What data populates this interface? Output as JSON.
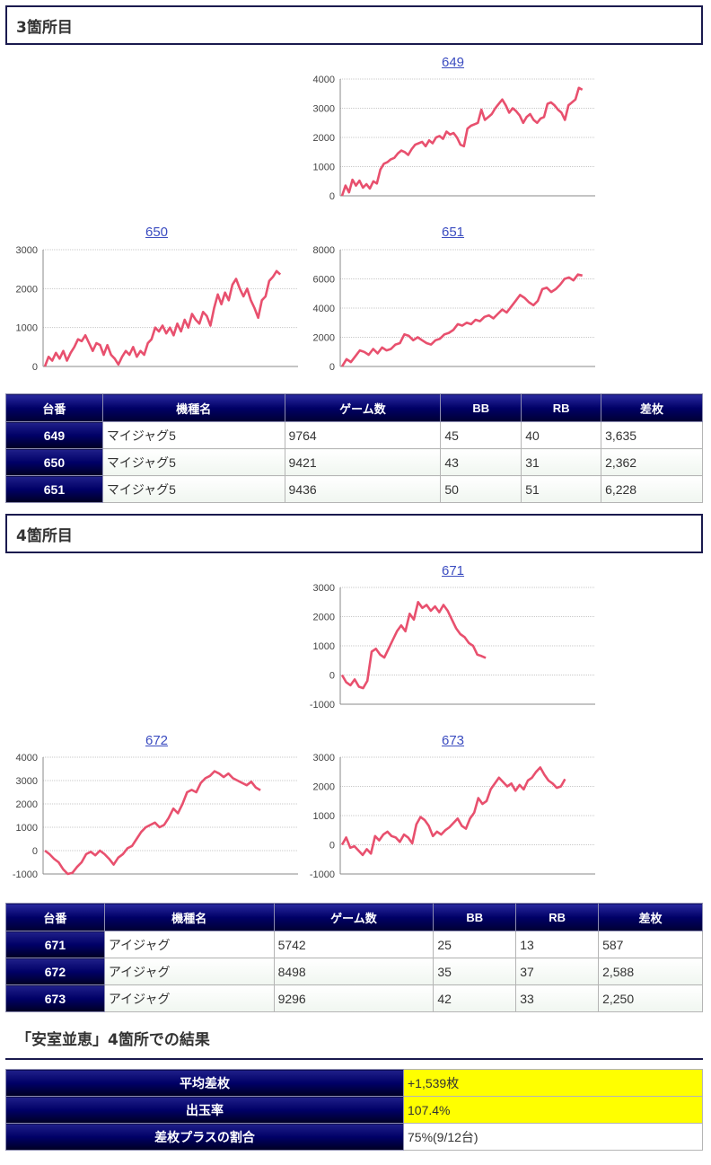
{
  "sections": [
    {
      "title": "3箇所目"
    },
    {
      "title": "4箇所目"
    }
  ],
  "tables": [
    {
      "headers": [
        "台番",
        "機種名",
        "ゲーム数",
        "BB",
        "RB",
        "差枚"
      ],
      "rows": [
        {
          "no": "649",
          "machine": "マイジャグ5",
          "games": "9764",
          "bb": "45",
          "rb": "40",
          "diff": "3,635"
        },
        {
          "no": "650",
          "machine": "マイジャグ5",
          "games": "9421",
          "bb": "43",
          "rb": "31",
          "diff": "2,362"
        },
        {
          "no": "651",
          "machine": "マイジャグ5",
          "games": "9436",
          "bb": "50",
          "rb": "51",
          "diff": "6,228"
        }
      ]
    },
    {
      "headers": [
        "台番",
        "機種名",
        "ゲーム数",
        "BB",
        "RB",
        "差枚"
      ],
      "rows": [
        {
          "no": "671",
          "machine": "アイジャグ",
          "games": "5742",
          "bb": "25",
          "rb": "13",
          "diff": "587"
        },
        {
          "no": "672",
          "machine": "アイジャグ",
          "games": "8498",
          "bb": "35",
          "rb": "37",
          "diff": "2,588"
        },
        {
          "no": "673",
          "machine": "アイジャグ",
          "games": "9296",
          "bb": "42",
          "rb": "33",
          "diff": "2,250"
        }
      ]
    }
  ],
  "result": {
    "title": "「安室並恵」4箇所での結果",
    "rows": [
      {
        "label": "平均差枚",
        "value": "+1,539枚",
        "highlight": true
      },
      {
        "label": "出玉率",
        "value": "107.4%",
        "highlight": true
      },
      {
        "label": "差枚プラスの割合",
        "value": "75%(9/12台)",
        "highlight": false
      }
    ]
  },
  "chart_data": [
    {
      "type": "line",
      "title": "649",
      "ylim": [
        0,
        4000
      ],
      "yticks": [
        0,
        1000,
        2000,
        3000,
        4000
      ],
      "ytick_labels": [
        "0",
        "1000",
        "2000",
        "3000",
        "4000"
      ],
      "grid": true,
      "color": "#e8506e",
      "values": [
        0,
        350,
        120,
        550,
        350,
        520,
        280,
        400,
        250,
        500,
        420,
        900,
        1100,
        1150,
        1250,
        1300,
        1450,
        1550,
        1500,
        1400,
        1600,
        1750,
        1800,
        1850,
        1700,
        1900,
        1800,
        2000,
        2050,
        1950,
        2200,
        2100,
        2150,
        2000,
        1750,
        1700,
        2300,
        2400,
        2450,
        2500,
        2950,
        2600,
        2700,
        2800,
        3000,
        3150,
        3300,
        3100,
        2850,
        3000,
        2900,
        2750,
        2500,
        2700,
        2800,
        2600,
        2500,
        2650,
        2700,
        3150,
        3200,
        3100,
        2950,
        2850,
        2600,
        3100,
        3200,
        3300,
        3700,
        3635
      ]
    },
    {
      "type": "line",
      "title": "650",
      "ylim": [
        0,
        3000
      ],
      "yticks": [
        0,
        1000,
        2000,
        3000
      ],
      "ytick_labels": [
        "0",
        "1000",
        "2000",
        "3000"
      ],
      "grid": true,
      "color": "#e8506e",
      "values": [
        0,
        250,
        150,
        350,
        200,
        400,
        150,
        350,
        500,
        700,
        650,
        800,
        600,
        400,
        600,
        550,
        300,
        550,
        300,
        200,
        50,
        250,
        400,
        300,
        500,
        250,
        400,
        300,
        600,
        700,
        1000,
        900,
        1050,
        850,
        1000,
        800,
        1100,
        900,
        1200,
        1000,
        1350,
        1200,
        1100,
        1400,
        1300,
        1050,
        1500,
        1850,
        1600,
        1900,
        1700,
        2100,
        2250,
        2000,
        1800,
        2000,
        1700,
        1500,
        1250,
        1700,
        1800,
        2200,
        2300,
        2450,
        2362
      ]
    },
    {
      "type": "line",
      "title": "651",
      "ylim": [
        0,
        8000
      ],
      "yticks": [
        0,
        2000,
        4000,
        6000,
        8000
      ],
      "ytick_labels": [
        "0",
        "2000",
        "4000",
        "6000",
        "8000"
      ],
      "grid": true,
      "color": "#e8506e",
      "values": [
        0,
        500,
        300,
        700,
        1100,
        1000,
        800,
        1200,
        900,
        1300,
        1100,
        1200,
        1500,
        1600,
        2200,
        2100,
        1800,
        2000,
        1800,
        1600,
        1500,
        1800,
        1900,
        2200,
        2300,
        2500,
        2900,
        2800,
        3000,
        2900,
        3200,
        3100,
        3400,
        3500,
        3300,
        3600,
        3900,
        3700,
        4100,
        4500,
        4900,
        4700,
        4400,
        4200,
        4500,
        5300,
        5400,
        5100,
        5300,
        5600,
        6000,
        6100,
        5900,
        6300,
        6228
      ]
    },
    {
      "type": "line",
      "title": "671",
      "ylim": [
        -1000,
        3000
      ],
      "yticks": [
        -1000,
        0,
        1000,
        2000,
        3000
      ],
      "ytick_labels": [
        "-1000",
        "0",
        "1000",
        "2000",
        "3000"
      ],
      "grid": true,
      "color": "#e8506e",
      "values": [
        0,
        -250,
        -350,
        -150,
        -400,
        -450,
        -200,
        800,
        900,
        700,
        600,
        900,
        1200,
        1500,
        1700,
        1500,
        2100,
        1900,
        2500,
        2300,
        2400,
        2200,
        2350,
        2150,
        2400,
        2200,
        1900,
        1600,
        1400,
        1300,
        1100,
        1000,
        700,
        650,
        587
      ]
    },
    {
      "type": "line",
      "title": "672",
      "ylim": [
        -1000,
        4000
      ],
      "yticks": [
        -1000,
        0,
        1000,
        2000,
        3000,
        4000
      ],
      "ytick_labels": [
        "-1000",
        "0",
        "1000",
        "2000",
        "3000",
        "4000"
      ],
      "grid": true,
      "color": "#e8506e",
      "values": [
        0,
        -150,
        -350,
        -500,
        -800,
        -1000,
        -950,
        -700,
        -500,
        -150,
        -50,
        -200,
        0,
        -150,
        -350,
        -600,
        -300,
        -150,
        100,
        200,
        500,
        800,
        1000,
        1100,
        1200,
        1000,
        1100,
        1400,
        1800,
        1600,
        2000,
        2500,
        2600,
        2500,
        2900,
        3100,
        3200,
        3400,
        3300,
        3150,
        3300,
        3100,
        3000,
        2900,
        2800,
        2950,
        2700,
        2588
      ]
    },
    {
      "type": "line",
      "title": "673",
      "ylim": [
        -1000,
        3000
      ],
      "yticks": [
        -1000,
        0,
        1000,
        2000,
        3000
      ],
      "ytick_labels": [
        "-1000",
        "0",
        "1000",
        "2000",
        "3000"
      ],
      "grid": true,
      "color": "#e8506e",
      "values": [
        0,
        250,
        -100,
        -50,
        -200,
        -350,
        -150,
        -300,
        300,
        150,
        350,
        450,
        300,
        250,
        100,
        350,
        250,
        50,
        700,
        950,
        850,
        650,
        300,
        450,
        350,
        500,
        600,
        750,
        900,
        650,
        550,
        900,
        1100,
        1600,
        1400,
        1500,
        1900,
        2100,
        2300,
        2150,
        2000,
        2100,
        1850,
        2050,
        1900,
        2200,
        2300,
        2500,
        2650,
        2400,
        2200,
        2100,
        1950,
        2000,
        2250
      ]
    }
  ]
}
